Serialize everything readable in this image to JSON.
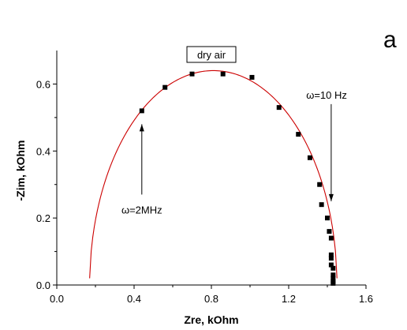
{
  "panel_letter": "a",
  "chart_data": {
    "type": "scatter",
    "title": "dry air",
    "xlabel": "Zre, kOhm",
    "ylabel": "-Zim, kOhm",
    "xlim": [
      0.0,
      1.6
    ],
    "ylim": [
      0.0,
      0.7
    ],
    "x_ticks": [
      "0.0",
      "0.4",
      "0.8",
      "1.2",
      "1.6"
    ],
    "y_ticks": [
      "0.0",
      "0.2",
      "0.4",
      "0.6"
    ],
    "x_tick_values": [
      0.0,
      0.4,
      0.8,
      1.2,
      1.6
    ],
    "y_tick_values": [
      0.0,
      0.2,
      0.4,
      0.6
    ],
    "grid": false,
    "legend": "none",
    "series": [
      {
        "kind": "points",
        "color": "#000000",
        "x": [
          0.44,
          0.56,
          0.7,
          0.86,
          1.01,
          1.15,
          1.25,
          1.31,
          1.36,
          1.37,
          1.4,
          1.41,
          1.42,
          1.42,
          1.42,
          1.42,
          1.43,
          1.43,
          1.43,
          1.43,
          1.43
        ],
        "y": [
          0.52,
          0.59,
          0.63,
          0.63,
          0.62,
          0.53,
          0.45,
          0.38,
          0.3,
          0.24,
          0.2,
          0.16,
          0.14,
          0.09,
          0.08,
          0.06,
          0.05,
          0.03,
          0.02,
          0.01,
          0.005
        ]
      },
      {
        "kind": "fit",
        "color": "#cc0000",
        "center_x": 0.81,
        "radius_x": 0.64,
        "peak_y": 0.64,
        "x_start": 0.17,
        "x_end": 1.45
      }
    ],
    "annotations": [
      {
        "text": "ω=2MHz",
        "arrow_tail": [
          0.44,
          0.27
        ],
        "arrow_head": [
          0.44,
          0.48
        ]
      },
      {
        "text": "ω=10 Hz",
        "arrow_tail": [
          1.42,
          0.54
        ],
        "arrow_head": [
          1.42,
          0.25
        ]
      }
    ]
  }
}
